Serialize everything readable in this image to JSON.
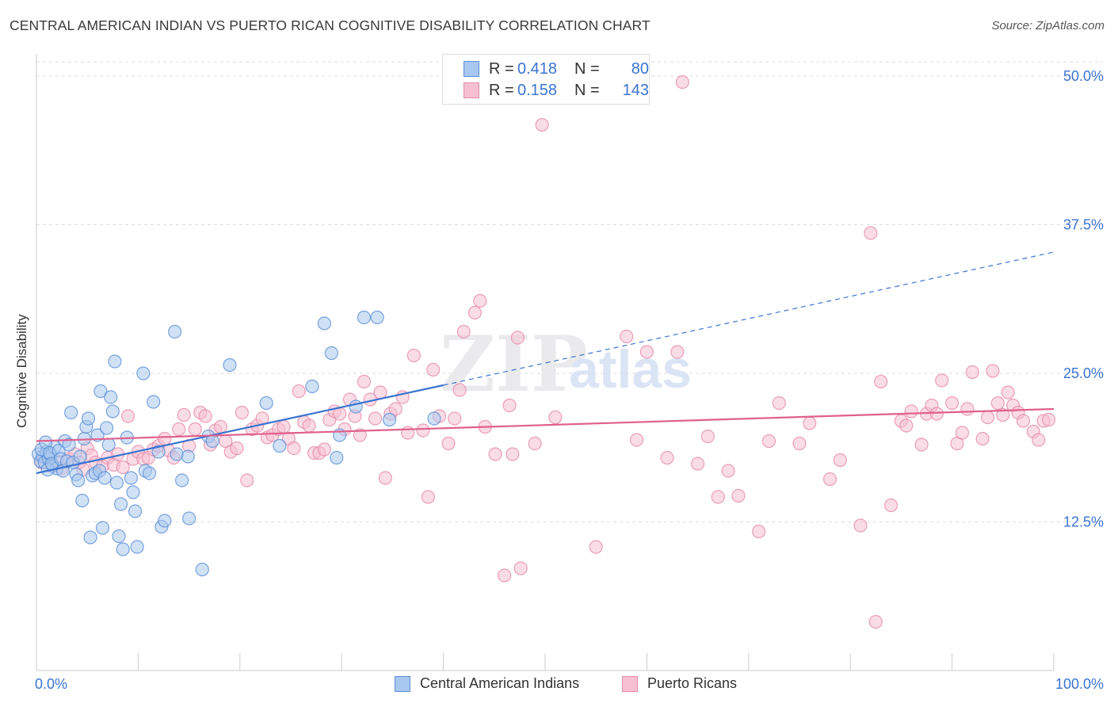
{
  "header": {
    "title": "CENTRAL AMERICAN INDIAN VS PUERTO RICAN COGNITIVE DISABILITY CORRELATION CHART",
    "source": "Source: ZipAtlas.com"
  },
  "legend": {
    "r_label": "R =",
    "n_label": "N =",
    "series": [
      {
        "name": "Central American Indians",
        "r": "0.418",
        "n": "80"
      },
      {
        "name": "Puerto Ricans",
        "r": "0.158",
        "n": "143"
      }
    ]
  },
  "watermark": {
    "zip": "ZIP",
    "atlas": "atlas"
  },
  "colors": {
    "blue_fill": "#a9c8ef",
    "blue_stroke": "#5b8fd6",
    "blue_line": "#3b74d0",
    "pink_fill": "#f6c0d2",
    "pink_stroke": "#e58aab",
    "pink_line": "#e0608c",
    "grid": "#dddddd",
    "axis_value": "#3b74d0"
  },
  "chart_data": {
    "type": "scatter",
    "title": "CENTRAL AMERICAN INDIAN VS PUERTO RICAN COGNITIVE DISABILITY CORRELATION CHART",
    "xlabel": "",
    "ylabel": "Cognitive Disability",
    "xlim": [
      0,
      100
    ],
    "ylim": [
      0,
      52
    ],
    "x_tick_labels": [
      "0.0%",
      "100.0%"
    ],
    "y_ticks": [
      12.5,
      25.0,
      37.5,
      50.0
    ],
    "y_tick_labels": [
      "12.5%",
      "25.0%",
      "37.5%",
      "50.0%"
    ],
    "grid": true,
    "legend_position": "top-center",
    "series": [
      {
        "name": "Central American Indians",
        "r": 0.418,
        "n": 80,
        "trend": {
          "x_start": 0,
          "y_start": 16.6,
          "x_solid_end": 40,
          "y_solid_end": 24.0,
          "x_end": 100,
          "y_end": 35.2
        },
        "points": [
          [
            0.2,
            18.2
          ],
          [
            0.4,
            17.6
          ],
          [
            0.6,
            18.0
          ],
          [
            0.8,
            17.5
          ],
          [
            1.0,
            18.4
          ],
          [
            1.2,
            17.8
          ],
          [
            0.5,
            18.6
          ],
          [
            1.4,
            18.1
          ],
          [
            1.6,
            17.2
          ],
          [
            1.8,
            18.8
          ],
          [
            2.0,
            17.0
          ],
          [
            0.9,
            19.2
          ],
          [
            1.1,
            16.9
          ],
          [
            1.3,
            18.3
          ],
          [
            1.5,
            17.4
          ],
          [
            2.2,
            18.5
          ],
          [
            2.4,
            17.8
          ],
          [
            2.6,
            16.8
          ],
          [
            2.8,
            19.3
          ],
          [
            3.0,
            17.6
          ],
          [
            3.2,
            19.0
          ],
          [
            3.4,
            21.7
          ],
          [
            3.6,
            17.5
          ],
          [
            3.9,
            16.5
          ],
          [
            4.1,
            16.0
          ],
          [
            4.3,
            18.0
          ],
          [
            4.5,
            14.3
          ],
          [
            4.7,
            19.5
          ],
          [
            4.9,
            20.5
          ],
          [
            5.1,
            21.2
          ],
          [
            5.3,
            11.2
          ],
          [
            5.5,
            16.4
          ],
          [
            5.8,
            16.6
          ],
          [
            6.0,
            19.8
          ],
          [
            6.2,
            16.8
          ],
          [
            6.3,
            23.5
          ],
          [
            6.5,
            12.0
          ],
          [
            6.7,
            16.2
          ],
          [
            6.9,
            20.4
          ],
          [
            7.1,
            19.0
          ],
          [
            7.3,
            23.0
          ],
          [
            7.5,
            21.8
          ],
          [
            7.7,
            26.0
          ],
          [
            7.9,
            15.8
          ],
          [
            8.1,
            11.3
          ],
          [
            8.3,
            14.0
          ],
          [
            8.5,
            10.2
          ],
          [
            8.9,
            19.6
          ],
          [
            9.3,
            16.2
          ],
          [
            9.5,
            15.0
          ],
          [
            9.7,
            13.4
          ],
          [
            9.9,
            10.4
          ],
          [
            10.5,
            25.0
          ],
          [
            10.7,
            16.8
          ],
          [
            11.1,
            16.6
          ],
          [
            11.5,
            22.6
          ],
          [
            12.0,
            18.4
          ],
          [
            12.3,
            12.1
          ],
          [
            12.6,
            12.6
          ],
          [
            13.6,
            28.5
          ],
          [
            13.8,
            18.2
          ],
          [
            14.3,
            16.0
          ],
          [
            14.9,
            18.0
          ],
          [
            15.0,
            12.8
          ],
          [
            16.3,
            8.5
          ],
          [
            16.9,
            19.7
          ],
          [
            17.3,
            19.3
          ],
          [
            19.0,
            25.7
          ],
          [
            22.6,
            22.5
          ],
          [
            23.9,
            18.9
          ],
          [
            27.1,
            23.9
          ],
          [
            28.3,
            29.2
          ],
          [
            29.0,
            26.7
          ],
          [
            29.5,
            17.9
          ],
          [
            29.8,
            19.8
          ],
          [
            31.4,
            22.2
          ],
          [
            32.2,
            29.7
          ],
          [
            33.5,
            29.7
          ],
          [
            34.7,
            21.1
          ],
          [
            39.1,
            21.2
          ]
        ]
      },
      {
        "name": "Puerto Ricans",
        "r": 0.158,
        "n": 143,
        "trend": {
          "x_start": 0,
          "y_start": 19.3,
          "x_end": 100,
          "y_end": 22.0
        },
        "points": [
          [
            0.5,
            17.5
          ],
          [
            1.0,
            18.4
          ],
          [
            1.5,
            17.2
          ],
          [
            2.0,
            17.6
          ],
          [
            2.5,
            17.0
          ],
          [
            3.2,
            17.8
          ],
          [
            3.8,
            18.2
          ],
          [
            4.2,
            17.5
          ],
          [
            4.6,
            16.9
          ],
          [
            5.0,
            18.7
          ],
          [
            5.4,
            18.1
          ],
          [
            5.8,
            17.5
          ],
          [
            6.5,
            17.2
          ],
          [
            7.0,
            17.9
          ],
          [
            7.6,
            17.3
          ],
          [
            8.0,
            18.2
          ],
          [
            8.5,
            17.1
          ],
          [
            9.0,
            21.4
          ],
          [
            9.5,
            17.8
          ],
          [
            10.0,
            18.4
          ],
          [
            10.5,
            17.8
          ],
          [
            11.0,
            17.9
          ],
          [
            11.5,
            18.6
          ],
          [
            12.0,
            18.9
          ],
          [
            12.6,
            19.5
          ],
          [
            13.0,
            18.5
          ],
          [
            13.5,
            17.9
          ],
          [
            14.0,
            20.3
          ],
          [
            14.5,
            21.5
          ],
          [
            15.0,
            18.9
          ],
          [
            15.6,
            20.3
          ],
          [
            16.1,
            21.7
          ],
          [
            16.6,
            21.4
          ],
          [
            17.1,
            19.0
          ],
          [
            17.6,
            20.2
          ],
          [
            18.1,
            20.5
          ],
          [
            18.6,
            19.3
          ],
          [
            19.1,
            18.4
          ],
          [
            19.7,
            18.7
          ],
          [
            20.2,
            21.7
          ],
          [
            20.7,
            16.0
          ],
          [
            21.2,
            20.3
          ],
          [
            21.7,
            20.6
          ],
          [
            22.2,
            21.2
          ],
          [
            22.7,
            19.6
          ],
          [
            23.2,
            19.8
          ],
          [
            23.8,
            20.3
          ],
          [
            24.3,
            20.5
          ],
          [
            24.8,
            19.5
          ],
          [
            25.3,
            18.7
          ],
          [
            25.8,
            23.5
          ],
          [
            26.3,
            20.9
          ],
          [
            26.8,
            20.6
          ],
          [
            27.3,
            18.3
          ],
          [
            27.8,
            18.3
          ],
          [
            28.3,
            18.6
          ],
          [
            28.8,
            21.1
          ],
          [
            29.3,
            21.8
          ],
          [
            29.8,
            21.6
          ],
          [
            30.3,
            20.3
          ],
          [
            30.8,
            22.8
          ],
          [
            31.3,
            21.4
          ],
          [
            31.8,
            19.8
          ],
          [
            32.2,
            24.3
          ],
          [
            32.8,
            22.8
          ],
          [
            33.3,
            21.2
          ],
          [
            33.8,
            23.4
          ],
          [
            34.3,
            16.2
          ],
          [
            34.8,
            21.6
          ],
          [
            35.3,
            22.0
          ],
          [
            36.0,
            23.0
          ],
          [
            36.5,
            20.0
          ],
          [
            37.1,
            26.5
          ],
          [
            38.0,
            20.2
          ],
          [
            38.5,
            14.6
          ],
          [
            39.0,
            25.3
          ],
          [
            39.6,
            21.4
          ],
          [
            40.5,
            19.1
          ],
          [
            41.1,
            21.2
          ],
          [
            41.6,
            23.6
          ],
          [
            42.0,
            28.5
          ],
          [
            43.1,
            30.1
          ],
          [
            43.6,
            31.1
          ],
          [
            44.1,
            20.5
          ],
          [
            45.1,
            18.2
          ],
          [
            46.0,
            8.0
          ],
          [
            46.5,
            22.3
          ],
          [
            46.8,
            18.2
          ],
          [
            47.3,
            28.0
          ],
          [
            47.6,
            8.6
          ],
          [
            49.0,
            19.1
          ],
          [
            49.7,
            45.9
          ],
          [
            51.0,
            21.3
          ],
          [
            55.0,
            10.4
          ],
          [
            58.0,
            28.1
          ],
          [
            60.0,
            26.8
          ],
          [
            62.0,
            17.9
          ],
          [
            63.0,
            26.8
          ],
          [
            65.0,
            17.4
          ],
          [
            66.0,
            19.7
          ],
          [
            67.0,
            14.6
          ],
          [
            68.0,
            16.8
          ],
          [
            71.0,
            11.7
          ],
          [
            72.0,
            19.3
          ],
          [
            73.0,
            22.5
          ],
          [
            75.0,
            19.1
          ],
          [
            76.0,
            20.8
          ],
          [
            78.0,
            16.1
          ],
          [
            81.0,
            12.2
          ],
          [
            82.0,
            36.8
          ],
          [
            82.5,
            4.1
          ],
          [
            83.0,
            24.3
          ],
          [
            84.0,
            13.9
          ],
          [
            85.0,
            21.0
          ],
          [
            85.5,
            20.6
          ],
          [
            86.0,
            21.8
          ],
          [
            87.0,
            19.0
          ],
          [
            87.5,
            21.6
          ],
          [
            88.0,
            22.3
          ],
          [
            88.5,
            21.6
          ],
          [
            89.0,
            24.4
          ],
          [
            90.0,
            22.5
          ],
          [
            90.5,
            19.1
          ],
          [
            91.0,
            20.0
          ],
          [
            91.5,
            22.0
          ],
          [
            92.0,
            25.1
          ],
          [
            93.0,
            19.5
          ],
          [
            93.5,
            21.3
          ],
          [
            94.0,
            25.2
          ],
          [
            94.5,
            22.5
          ],
          [
            95.0,
            21.5
          ],
          [
            95.5,
            23.4
          ],
          [
            96.0,
            22.3
          ],
          [
            96.5,
            21.7
          ],
          [
            97.0,
            21.0
          ],
          [
            98.0,
            20.1
          ],
          [
            98.5,
            19.4
          ],
          [
            99.0,
            21.0
          ],
          [
            99.5,
            21.1
          ],
          [
            59.0,
            19.4
          ],
          [
            69.0,
            14.7
          ],
          [
            79.0,
            17.7
          ],
          [
            63.5,
            49.5
          ]
        ]
      }
    ]
  }
}
